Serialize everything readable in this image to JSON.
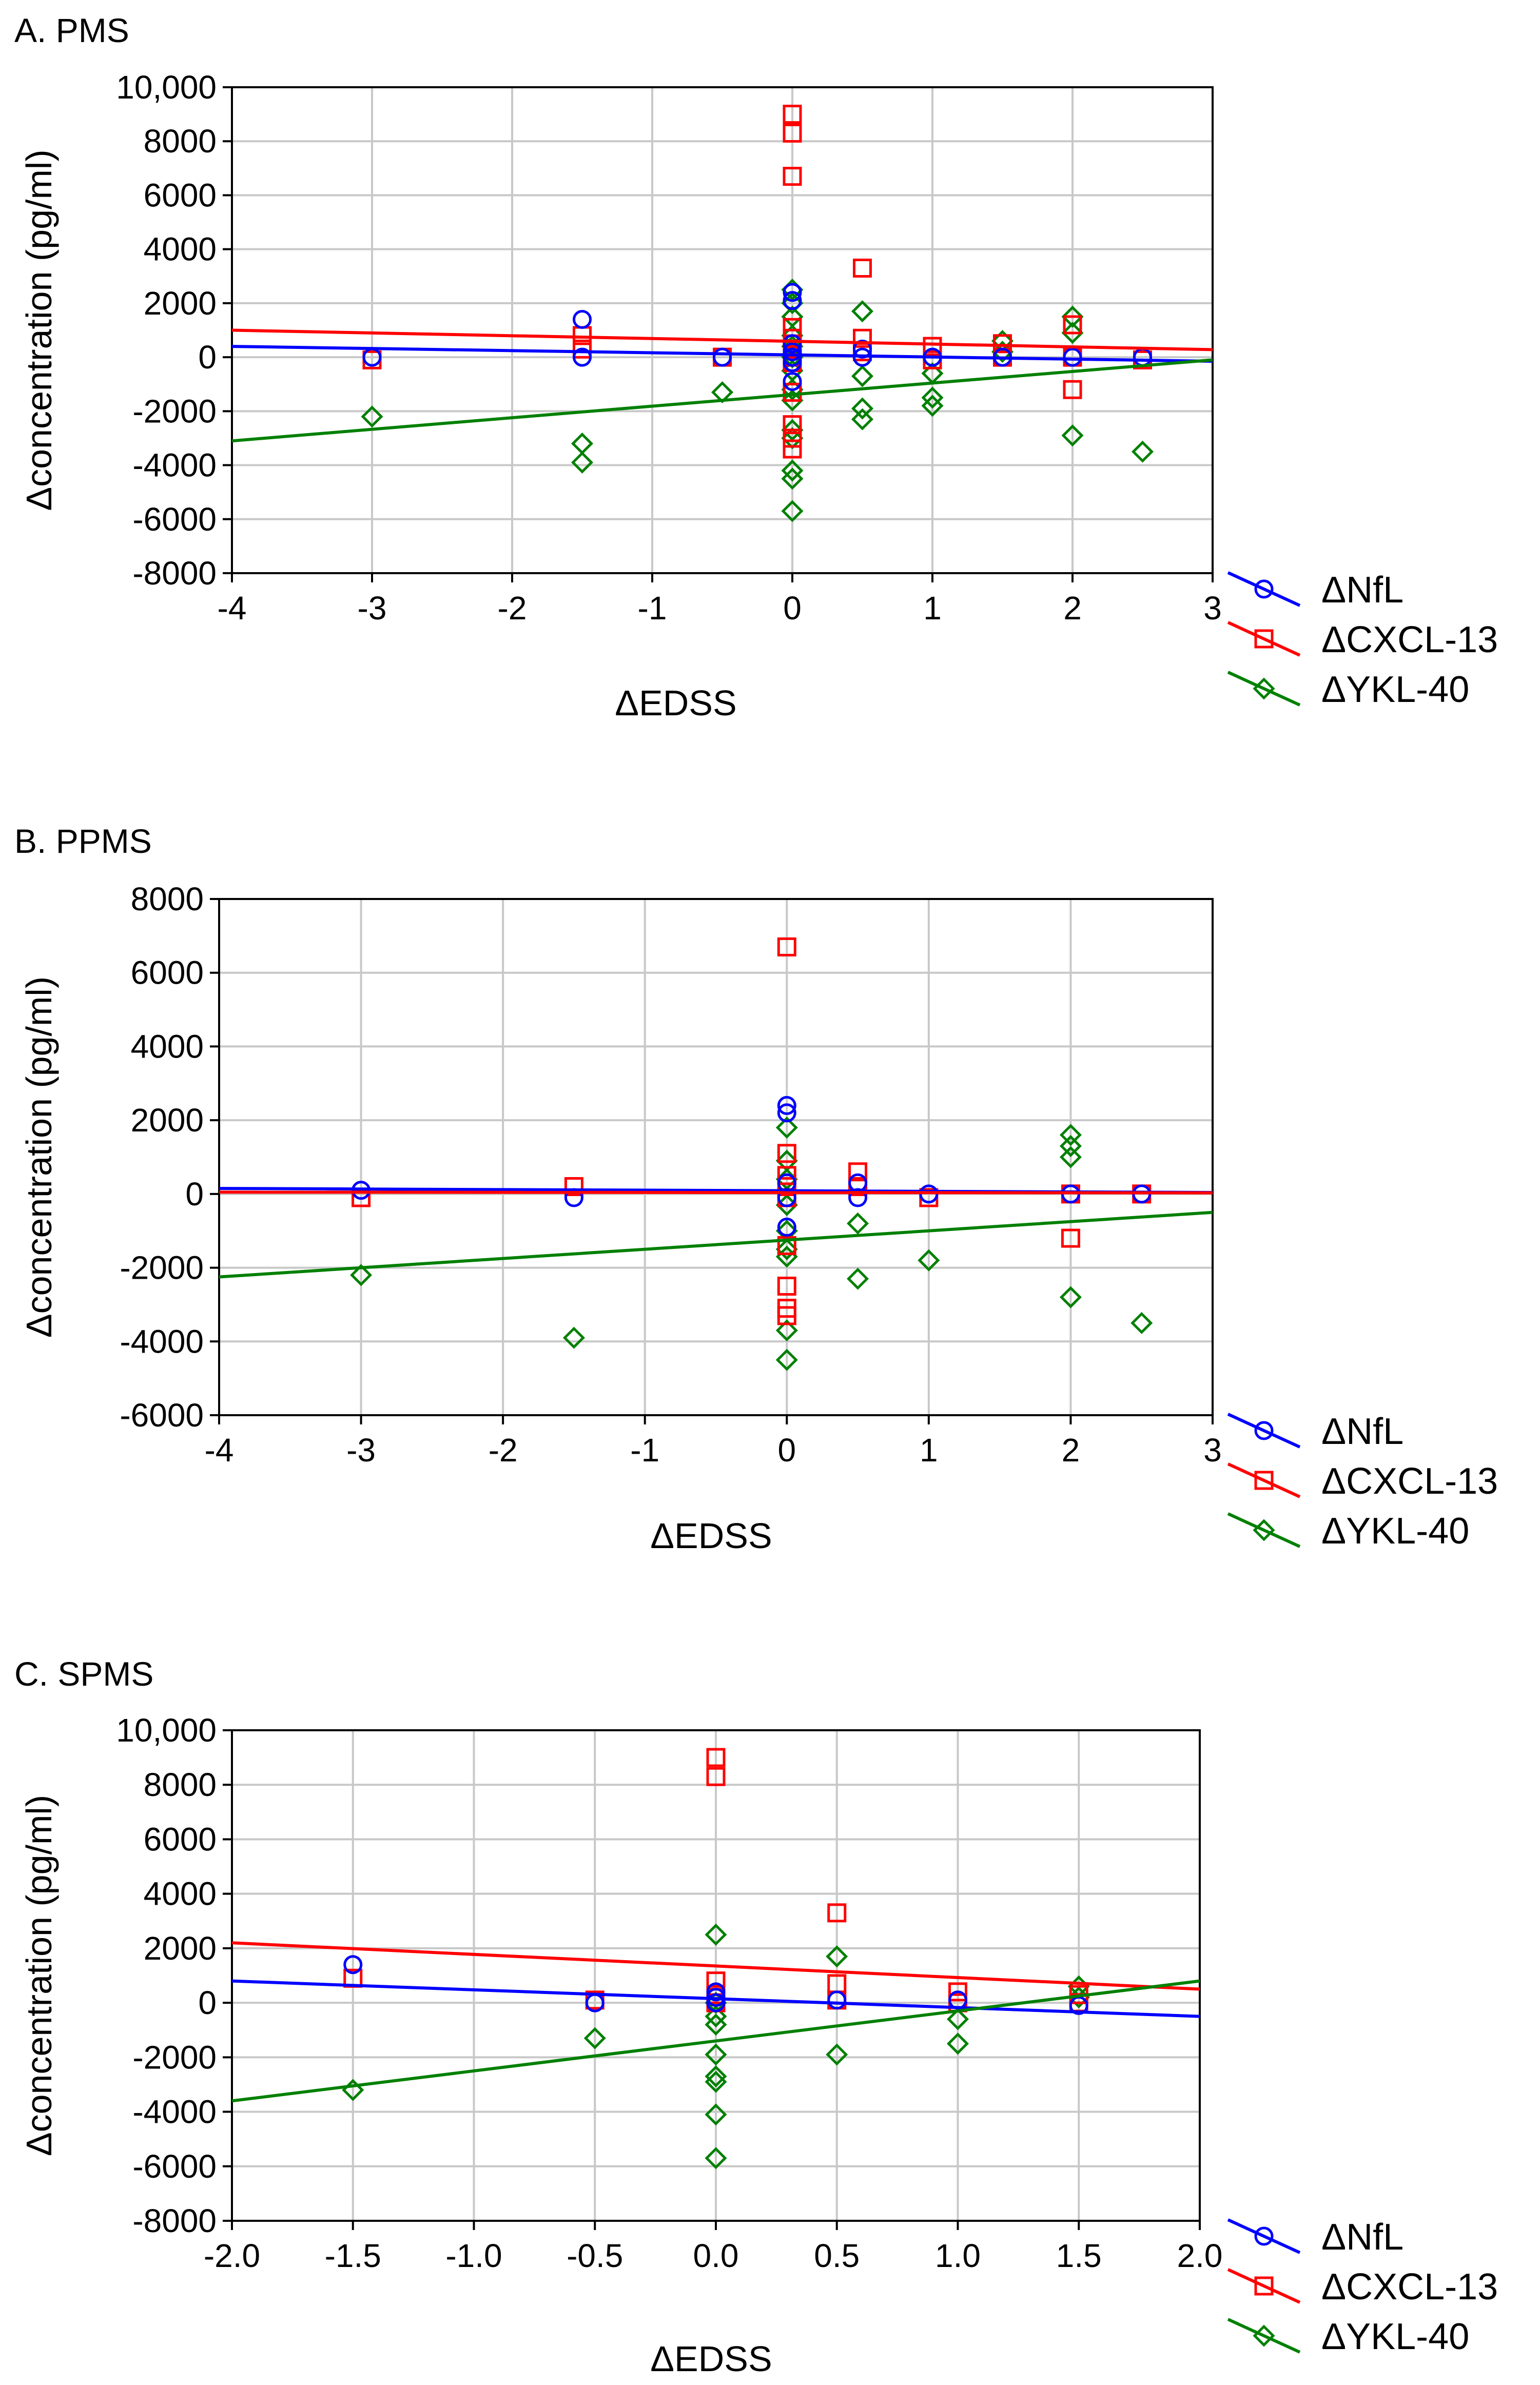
{
  "figure": {
    "title": ""
  },
  "chart_data": [
    {
      "type": "scatter",
      "panel_title": "A. PMS",
      "xlabel": "ΔEDSS",
      "ylabel": "Δconcentration (pg/ml)",
      "xlim": [
        -4,
        3
      ],
      "ylim": [
        -8000,
        10000
      ],
      "xticks": [
        -4,
        -3,
        -2,
        -1,
        0,
        1,
        2,
        3
      ],
      "xtick_labels": [
        "-4",
        "-3",
        "-2",
        "-1",
        "0",
        "1",
        "2",
        "3"
      ],
      "yticks": [
        -8000,
        -6000,
        -4000,
        -2000,
        0,
        2000,
        4000,
        6000,
        8000,
        10000
      ],
      "ytick_labels": [
        "-8000",
        "-6000",
        "-4000",
        "-2000",
        "0",
        "2000",
        "4000",
        "6000",
        "8000",
        "10,000"
      ],
      "grid": true,
      "legend_position": "bottom-right outside",
      "series": [
        {
          "name": "ΔNfL",
          "color": "#0000ff",
          "marker": "circle",
          "points": [
            [
              -3,
              0
            ],
            [
              -1.5,
              1400
            ],
            [
              -1.5,
              0
            ],
            [
              -0.5,
              0
            ],
            [
              0,
              2400
            ],
            [
              0,
              2100
            ],
            [
              0,
              500
            ],
            [
              0,
              200
            ],
            [
              0,
              0
            ],
            [
              0,
              -200
            ],
            [
              0,
              -900
            ],
            [
              0.5,
              300
            ],
            [
              0.5,
              0
            ],
            [
              1,
              0
            ],
            [
              1.5,
              0
            ],
            [
              2,
              0
            ],
            [
              2.5,
              0
            ]
          ],
          "fit": [
            [
              -4,
              400
            ],
            [
              3,
              -150
            ]
          ]
        },
        {
          "name": "ΔCXCL-13",
          "color": "#ff0000",
          "marker": "square",
          "points": [
            [
              -3,
              -100
            ],
            [
              -1.5,
              800
            ],
            [
              -1.5,
              300
            ],
            [
              -0.5,
              0
            ],
            [
              0,
              9000
            ],
            [
              0,
              8300
            ],
            [
              0,
              6700
            ],
            [
              0,
              1100
            ],
            [
              0,
              700
            ],
            [
              0,
              300
            ],
            [
              0,
              0
            ],
            [
              0,
              -200
            ],
            [
              0,
              -1300
            ],
            [
              0,
              -2500
            ],
            [
              0,
              -3000
            ],
            [
              0,
              -3400
            ],
            [
              0.5,
              3300
            ],
            [
              0.5,
              700
            ],
            [
              0.5,
              200
            ],
            [
              1,
              400
            ],
            [
              1,
              -100
            ],
            [
              1.5,
              500
            ],
            [
              1.5,
              0
            ],
            [
              2,
              1200
            ],
            [
              2,
              0
            ],
            [
              2,
              -1200
            ],
            [
              2.5,
              -100
            ]
          ],
          "fit": [
            [
              -4,
              1000
            ],
            [
              3,
              280
            ]
          ]
        },
        {
          "name": "ΔYKL-40",
          "color": "#008000",
          "marker": "diamond",
          "points": [
            [
              -3,
              -2200
            ],
            [
              -1.5,
              -3200
            ],
            [
              -1.5,
              -3900
            ],
            [
              -0.5,
              -1300
            ],
            [
              0,
              2500
            ],
            [
              0,
              2000
            ],
            [
              0,
              1500
            ],
            [
              0,
              800
            ],
            [
              0,
              400
            ],
            [
              0,
              0
            ],
            [
              0,
              -500
            ],
            [
              0,
              -1200
            ],
            [
              0,
              -1600
            ],
            [
              0,
              -2700
            ],
            [
              0,
              -3000
            ],
            [
              0,
              -4200
            ],
            [
              0,
              -4500
            ],
            [
              0,
              -5700
            ],
            [
              0.5,
              1700
            ],
            [
              0.5,
              -700
            ],
            [
              0.5,
              -1900
            ],
            [
              0.5,
              -2300
            ],
            [
              1,
              -600
            ],
            [
              1,
              -1500
            ],
            [
              1,
              -1800
            ],
            [
              1.5,
              600
            ],
            [
              1.5,
              200
            ],
            [
              2,
              1500
            ],
            [
              2,
              900
            ],
            [
              2,
              -2900
            ],
            [
              2.5,
              -3500
            ]
          ],
          "fit": [
            [
              -4,
              -3100
            ],
            [
              3,
              -100
            ]
          ]
        }
      ]
    },
    {
      "type": "scatter",
      "panel_title": "B. PPMS",
      "xlabel": "ΔEDSS",
      "ylabel": "Δconcentration (pg/ml)",
      "xlim": [
        -4,
        3
      ],
      "ylim": [
        -6000,
        8000
      ],
      "xticks": [
        -4,
        -3,
        -2,
        -1,
        0,
        1,
        2,
        3
      ],
      "xtick_labels": [
        "-4",
        "-3",
        "-2",
        "-1",
        "0",
        "1",
        "2",
        "3"
      ],
      "yticks": [
        -6000,
        -4000,
        -2000,
        0,
        2000,
        4000,
        6000,
        8000
      ],
      "ytick_labels": [
        "-6000",
        "-4000",
        "-2000",
        "0",
        "2000",
        "4000",
        "6000",
        "8000"
      ],
      "grid": true,
      "legend_position": "bottom-right outside",
      "series": [
        {
          "name": "ΔNfL",
          "color": "#0000ff",
          "marker": "circle",
          "points": [
            [
              -3,
              100
            ],
            [
              -1.5,
              -100
            ],
            [
              0,
              2400
            ],
            [
              0,
              2200
            ],
            [
              0,
              300
            ],
            [
              0,
              -100
            ],
            [
              0,
              -900
            ],
            [
              0.5,
              300
            ],
            [
              0.5,
              -100
            ],
            [
              1,
              0
            ],
            [
              2,
              0
            ],
            [
              2.5,
              0
            ]
          ],
          "fit": [
            [
              -4,
              150
            ],
            [
              3,
              40
            ]
          ]
        },
        {
          "name": "ΔCXCL-13",
          "color": "#ff0000",
          "marker": "square",
          "points": [
            [
              -3,
              -100
            ],
            [
              -1.5,
              200
            ],
            [
              0,
              6700
            ],
            [
              0,
              1100
            ],
            [
              0,
              500
            ],
            [
              0,
              200
            ],
            [
              0,
              -100
            ],
            [
              0,
              -1400
            ],
            [
              0,
              -2500
            ],
            [
              0,
              -3100
            ],
            [
              0,
              -3300
            ],
            [
              0.5,
              600
            ],
            [
              0.5,
              200
            ],
            [
              1,
              -100
            ],
            [
              2,
              0
            ],
            [
              2,
              -1200
            ],
            [
              2.5,
              0
            ]
          ],
          "fit": [
            [
              -4,
              50
            ],
            [
              3,
              30
            ]
          ]
        },
        {
          "name": "ΔYKL-40",
          "color": "#008000",
          "marker": "diamond",
          "points": [
            [
              -3,
              -2200
            ],
            [
              -1.5,
              -3900
            ],
            [
              0,
              1800
            ],
            [
              0,
              900
            ],
            [
              0,
              400
            ],
            [
              0,
              -300
            ],
            [
              0,
              -1000
            ],
            [
              0,
              -1500
            ],
            [
              0,
              -1700
            ],
            [
              0,
              -3700
            ],
            [
              0,
              -4500
            ],
            [
              0.5,
              -800
            ],
            [
              0.5,
              -2300
            ],
            [
              1,
              -1800
            ],
            [
              2,
              1600
            ],
            [
              2,
              1300
            ],
            [
              2,
              1000
            ],
            [
              2,
              -2800
            ],
            [
              2.5,
              -3500
            ]
          ],
          "fit": [
            [
              -4,
              -2250
            ],
            [
              3,
              -500
            ]
          ]
        }
      ]
    },
    {
      "type": "scatter",
      "panel_title": "C. SPMS",
      "xlabel": "ΔEDSS",
      "ylabel": "Δconcentration (pg/ml)",
      "xlim": [
        -2.0,
        2.0
      ],
      "ylim": [
        -8000,
        10000
      ],
      "xticks": [
        -2,
        -1.5,
        -1,
        -0.5,
        0,
        0.5,
        1,
        1.5,
        2
      ],
      "xtick_labels": [
        "-2.0",
        "-1.5",
        "-1.0",
        "-0.5",
        "0.0",
        "0.5",
        "1.0",
        "1.5",
        "2.0"
      ],
      "yticks": [
        -8000,
        -6000,
        -4000,
        -2000,
        0,
        2000,
        4000,
        6000,
        8000,
        10000
      ],
      "ytick_labels": [
        "-8000",
        "-6000",
        "-4000",
        "-2000",
        "0",
        "2000",
        "4000",
        "6000",
        "8000",
        "10,000"
      ],
      "grid": true,
      "legend_position": "bottom-right outside",
      "series": [
        {
          "name": "ΔNfL",
          "color": "#0000ff",
          "marker": "circle",
          "points": [
            [
              -1.5,
              1400
            ],
            [
              -0.5,
              0
            ],
            [
              0,
              400
            ],
            [
              0,
              200
            ],
            [
              0,
              0
            ],
            [
              0.5,
              100
            ],
            [
              1,
              100
            ],
            [
              1.5,
              -100
            ]
          ],
          "fit": [
            [
              -2,
              800
            ],
            [
              2,
              -500
            ]
          ]
        },
        {
          "name": "ΔCXCL-13",
          "color": "#ff0000",
          "marker": "square",
          "points": [
            [
              -1.5,
              900
            ],
            [
              -0.5,
              100
            ],
            [
              0,
              9000
            ],
            [
              0,
              8300
            ],
            [
              0,
              800
            ],
            [
              0,
              300
            ],
            [
              0,
              0
            ],
            [
              0.5,
              3300
            ],
            [
              0.5,
              700
            ],
            [
              0.5,
              100
            ],
            [
              1,
              400
            ],
            [
              1,
              0
            ],
            [
              1.5,
              300
            ],
            [
              1.5,
              0
            ]
          ],
          "fit": [
            [
              -2,
              2200
            ],
            [
              2,
              500
            ]
          ]
        },
        {
          "name": "ΔYKL-40",
          "color": "#008000",
          "marker": "diamond",
          "points": [
            [
              -1.5,
              -3200
            ],
            [
              -0.5,
              -1300
            ],
            [
              0,
              2500
            ],
            [
              0,
              0
            ],
            [
              0,
              -500
            ],
            [
              0,
              -800
            ],
            [
              0,
              -1900
            ],
            [
              0,
              -2700
            ],
            [
              0,
              -2900
            ],
            [
              0,
              -4100
            ],
            [
              0,
              -5700
            ],
            [
              0.5,
              1700
            ],
            [
              0.5,
              -1900
            ],
            [
              1,
              -600
            ],
            [
              1,
              -1500
            ],
            [
              1.5,
              600
            ],
            [
              1.5,
              200
            ]
          ],
          "fit": [
            [
              -2,
              -3600
            ],
            [
              2,
              800
            ]
          ]
        }
      ]
    }
  ]
}
